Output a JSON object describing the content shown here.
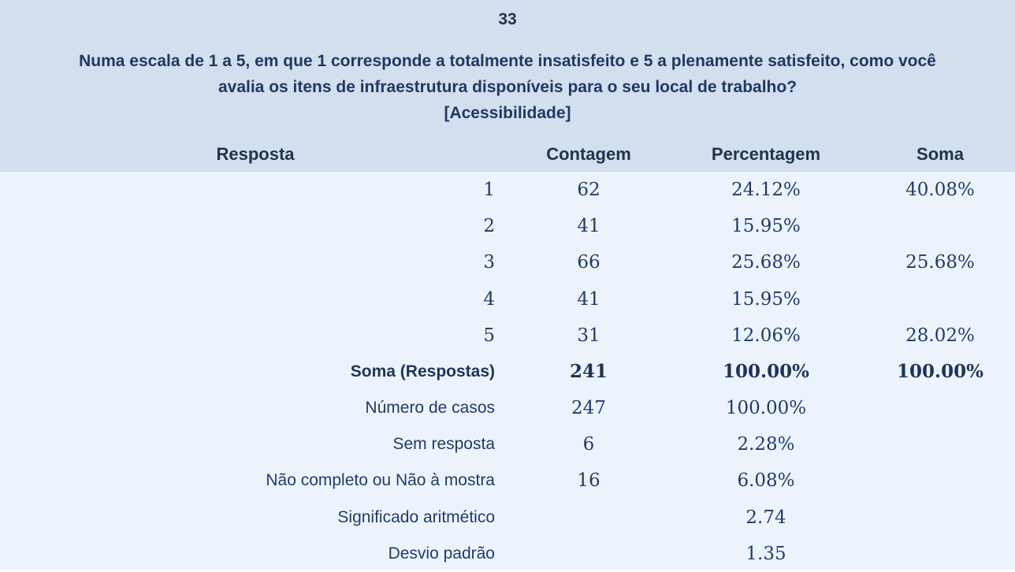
{
  "page": {
    "header_bg_color": "#d3dfee",
    "body_bg_color": "#edf3fc",
    "question_text_color": "#1f3864",
    "value_text_color": "#1f3c66"
  },
  "header": {
    "question_number": "33",
    "question_lines": [
      "Numa escala de 1 a 5, em que 1 corresponde a totalmente insatisfeito e 5 a plenamente satisfeito, como você",
      "avalia os itens de infraestrutura disponíveis para o seu local de trabalho?",
      "[Acessibilidade]"
    ]
  },
  "table": {
    "columns": [
      "Resposta",
      "Contagem",
      "Percentagem",
      "Soma"
    ],
    "rows": [
      {
        "label": "1",
        "contagem": "62",
        "percentagem": "24.12%",
        "soma": "40.08%",
        "bold": false
      },
      {
        "label": "2",
        "contagem": "41",
        "percentagem": "15.95%",
        "soma": "",
        "bold": false
      },
      {
        "label": "3",
        "contagem": "66",
        "percentagem": "25.68%",
        "soma": "25.68%",
        "bold": false
      },
      {
        "label": "4",
        "contagem": "41",
        "percentagem": "15.95%",
        "soma": "",
        "bold": false
      },
      {
        "label": "5",
        "contagem": "31",
        "percentagem": "12.06%",
        "soma": "28.02%",
        "bold": false
      },
      {
        "label": "Soma (Respostas)",
        "contagem": "241",
        "percentagem": "100.00%",
        "soma": "100.00%",
        "bold": true
      },
      {
        "label": "Número de casos",
        "contagem": "247",
        "percentagem": "100.00%",
        "soma": "",
        "bold": false
      },
      {
        "label": "Sem resposta",
        "contagem": "6",
        "percentagem": "2.28%",
        "soma": "",
        "bold": false
      },
      {
        "label": "Não completo ou Não à mostra",
        "contagem": "16",
        "percentagem": "6.08%",
        "soma": "",
        "bold": false
      },
      {
        "label": "Significado aritmético",
        "contagem": "",
        "percentagem": "2.74",
        "soma": "",
        "bold": false
      },
      {
        "label": "Desvio padrão",
        "contagem": "",
        "percentagem": "1.35",
        "soma": "",
        "bold": false
      }
    ]
  },
  "chart_data": {
    "type": "table",
    "title": "Numa escala de 1 a 5, em que 1 corresponde a totalmente insatisfeito e 5 a plenamente satisfeito, como você avalia os itens de infraestrutura disponíveis para o seu local de trabalho? [Acessibilidade]",
    "question_number": "33",
    "columns": [
      "Resposta",
      "Contagem",
      "Percentagem",
      "Soma"
    ],
    "rows": [
      [
        "1",
        62,
        "24.12%",
        "40.08%"
      ],
      [
        "2",
        41,
        "15.95%",
        ""
      ],
      [
        "3",
        66,
        "25.68%",
        "25.68%"
      ],
      [
        "4",
        41,
        "15.95%",
        ""
      ],
      [
        "5",
        31,
        "12.06%",
        "28.02%"
      ],
      [
        "Soma (Respostas)",
        241,
        "100.00%",
        "100.00%"
      ],
      [
        "Número de casos",
        247,
        "100.00%",
        ""
      ],
      [
        "Sem resposta",
        6,
        "2.28%",
        ""
      ],
      [
        "Não completo ou Não à mostra",
        16,
        "6.08%",
        ""
      ],
      [
        "Significado aritmético",
        "",
        2.74,
        ""
      ],
      [
        "Desvio padrão",
        "",
        1.35,
        ""
      ]
    ]
  }
}
